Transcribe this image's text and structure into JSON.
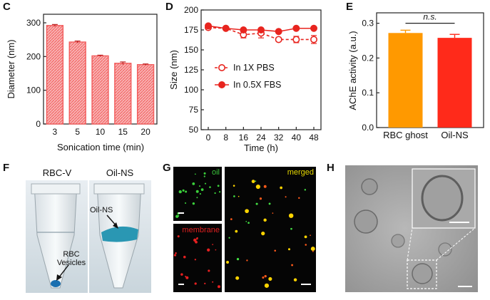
{
  "chart_data": [
    {
      "panel": "C",
      "type": "bar",
      "xlabel": "Sonication time (min)",
      "ylabel": "Diameter (nm)",
      "categories": [
        "3",
        "5",
        "10",
        "15",
        "20"
      ],
      "values": [
        292,
        243,
        202,
        180,
        176
      ],
      "errors": [
        3,
        3,
        2,
        4,
        2
      ],
      "ylim": [
        0,
        300
      ],
      "yticks": [
        "0",
        "100",
        "200",
        "300"
      ],
      "color": "#f25c5c"
    },
    {
      "panel": "D",
      "type": "line",
      "xlabel": "Time (h)",
      "ylabel": "Size (nm)",
      "x": [
        0,
        8,
        16,
        24,
        32,
        40,
        48
      ],
      "xticks": [
        "0",
        "8",
        "16",
        "24",
        "32",
        "40",
        "48"
      ],
      "ylim": [
        50,
        200
      ],
      "yticks": [
        "50",
        "75",
        "100",
        "125",
        "150",
        "175",
        "200"
      ],
      "series": [
        {
          "name": "In 1X PBS",
          "values": [
            178,
            177,
            169,
            171,
            163,
            163,
            163
          ],
          "errors": [
            0,
            0,
            4,
            6,
            0,
            4,
            5
          ],
          "style": "dashed-open"
        },
        {
          "name": "In 0.5X FBS",
          "values": [
            180,
            177,
            175,
            175,
            173,
            177,
            177
          ],
          "errors": [
            0,
            0,
            0,
            0,
            0,
            0,
            0
          ],
          "style": "solid-filled"
        }
      ],
      "color": "#e8251f"
    },
    {
      "panel": "E",
      "type": "bar",
      "xlabel": "",
      "ylabel": "AChE activity (a.u.)",
      "categories": [
        "RBC ghost",
        "Oil-NS"
      ],
      "values": [
        0.272,
        0.258
      ],
      "errors": [
        0.008,
        0.01
      ],
      "ylim": [
        0,
        0.33
      ],
      "yticks": [
        "0.0",
        "0.1",
        "0.2",
        "0.3"
      ],
      "colors": [
        "#ff9900",
        "#ff2a1a"
      ],
      "annotation": "n.s."
    }
  ],
  "panels": {
    "F": {
      "label": "F",
      "left_title": "RBC-V",
      "right_title": "Oil-NS",
      "arrow1": "Oil-NS",
      "arrow2_line1": "RBC",
      "arrow2_line2": "Vesicles"
    },
    "G": {
      "label": "G",
      "tile1": "oil",
      "tile2": "membrane",
      "tile3": "merged"
    },
    "H": {
      "label": "H"
    }
  },
  "colors": {
    "red": "#e8251f",
    "bar_red": "#f25c5c",
    "orange": "#ff9900"
  }
}
